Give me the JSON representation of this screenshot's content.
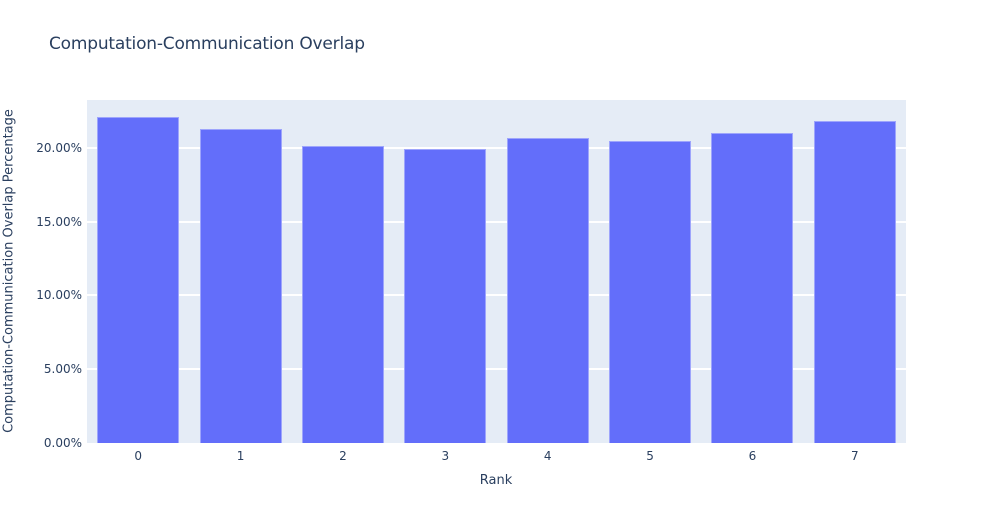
{
  "chart_data": {
    "type": "bar",
    "title": "Computation-Communication Overlap",
    "xlabel": "Rank",
    "ylabel": "Computation-Communication Overlap Percentage",
    "categories": [
      "0",
      "1",
      "2",
      "3",
      "4",
      "5",
      "6",
      "7"
    ],
    "values": [
      22.1,
      21.3,
      20.1,
      19.9,
      20.7,
      20.5,
      21.0,
      21.8
    ],
    "value_unit": "%",
    "ylim": [
      0,
      23.25
    ],
    "yticks": {
      "values": [
        0,
        5,
        10,
        15,
        20
      ],
      "labels": [
        "0.00%",
        "5.00%",
        "10.00%",
        "15.00%",
        "20.00%"
      ]
    },
    "grid": true,
    "legend_position": "none",
    "bar_gap_fraction": 0.2,
    "colors": {
      "bar_fill": "#636efa",
      "plot_background": "#e5ecf6",
      "gridline": "#ffffff",
      "text": "#2a3f5f",
      "page_background": "#ffffff"
    }
  }
}
